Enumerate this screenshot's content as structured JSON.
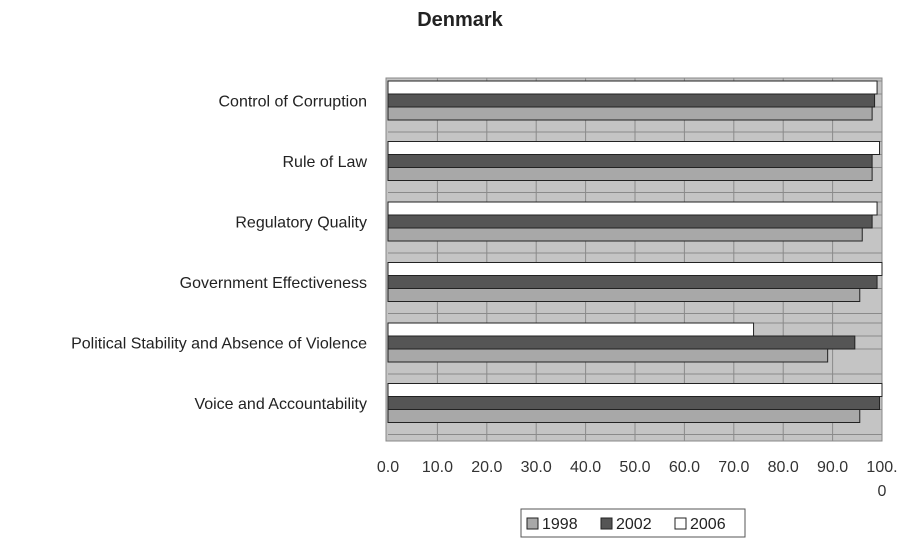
{
  "chart_data": {
    "type": "bar",
    "orientation": "horizontal",
    "title": "Denmark",
    "xlabel": "",
    "ylabel": "",
    "xlim": [
      0,
      100
    ],
    "x_ticks": [
      "0.0",
      "10.0",
      "20.0",
      "30.0",
      "40.0",
      "50.0",
      "60.0",
      "70.0",
      "80.0",
      "90.0",
      "100.",
      "0"
    ],
    "grid": true,
    "legend_position": "bottom",
    "categories": [
      "Control of Corruption",
      "Rule of Law",
      "Regulatory Quality",
      "Government Effectiveness",
      "Political Stability and Absence of Violence",
      "Voice and Accountability"
    ],
    "series": [
      {
        "name": "1998",
        "color": "#a8a8a8",
        "values": [
          98.0,
          98.0,
          96.0,
          95.5,
          89.0,
          95.5
        ]
      },
      {
        "name": "2002",
        "color": "#555555",
        "values": [
          98.5,
          98.0,
          98.0,
          99.0,
          94.5,
          99.5
        ]
      },
      {
        "name": "2006",
        "color": "#ffffff",
        "values": [
          99.0,
          99.5,
          99.0,
          100.0,
          74.0,
          100.0
        ]
      }
    ]
  }
}
